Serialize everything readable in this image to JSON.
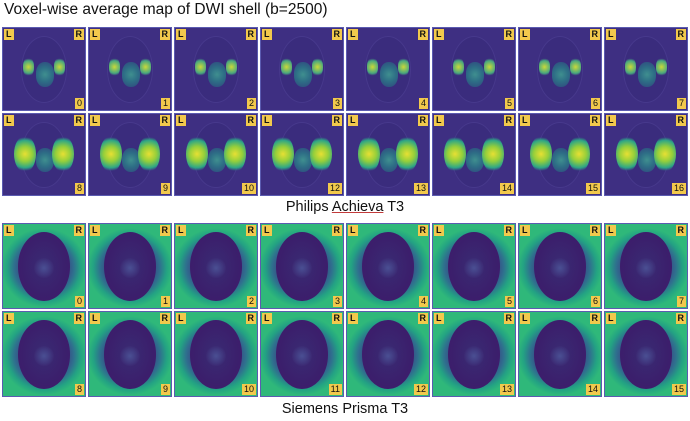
{
  "title": "Voxel-wise average map of DWI shell (b=2500)",
  "philips": {
    "caption_prefix": "Philips ",
    "caption_underlined": "Achieva",
    "caption_suffix": " T3",
    "left_marker": "L",
    "right_marker": "R",
    "slices": [
      "0",
      "1",
      "2",
      "3",
      "4",
      "5",
      "6",
      "7",
      "8",
      "9",
      "10",
      "12",
      "13",
      "14",
      "15",
      "16"
    ]
  },
  "siemens": {
    "caption": "Siemens Prisma T3",
    "left_marker": "L",
    "right_marker": "R",
    "slices": [
      "0",
      "1",
      "2",
      "3",
      "4",
      "5",
      "6",
      "7",
      "8",
      "9",
      "10",
      "11",
      "12",
      "13",
      "14",
      "15"
    ]
  },
  "colors": {
    "label_background": "#f2c94c",
    "philips_background": "#3e2f82",
    "siemens_edge": "#2fb87a"
  }
}
